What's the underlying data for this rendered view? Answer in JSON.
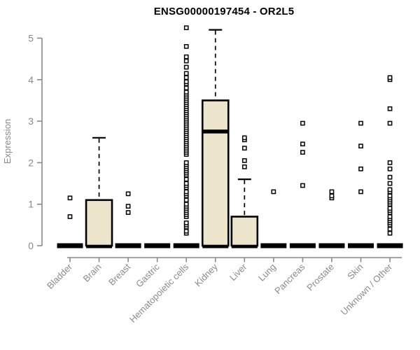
{
  "figure_title": "ENSG00000197454 - OR2L5",
  "colors": {
    "box_fill": "#EDE5CB",
    "box_stroke": "#000000",
    "axis": "#8a8a8a",
    "tick_text": "#8a8a8a",
    "title_text": "#000000",
    "background": "#ffffff"
  },
  "chart_data": {
    "type": "boxplot",
    "title": "ENSG00000197454 - OR2L5",
    "xlabel": "",
    "ylabel": "Expression",
    "ylim": [
      0,
      5.3
    ],
    "yticks": [
      0,
      1,
      2,
      3,
      4,
      5
    ],
    "grid": false,
    "legend": false,
    "categories": [
      "Bladder",
      "Brain",
      "Breast",
      "Gastric",
      "Hematopoietic cells",
      "Kidney",
      "Liver",
      "Lung",
      "Pancreas",
      "Prostate",
      "Skin",
      "Unknown / Other"
    ],
    "series": [
      {
        "category": "Bladder",
        "q1": 0,
        "median": 0,
        "q3": 0,
        "whisker_low": 0,
        "whisker_high": 0,
        "outliers": [
          0.7,
          1.15
        ]
      },
      {
        "category": "Brain",
        "q1": 0,
        "median": 0,
        "q3": 1.1,
        "whisker_low": 0,
        "whisker_high": 2.6,
        "outliers": []
      },
      {
        "category": "Breast",
        "q1": 0,
        "median": 0,
        "q3": 0,
        "whisker_low": 0,
        "whisker_high": 0,
        "outliers": [
          0.8,
          0.95,
          1.25
        ]
      },
      {
        "category": "Gastric",
        "q1": 0,
        "median": 0,
        "q3": 0,
        "whisker_low": 0,
        "whisker_high": 0,
        "outliers": []
      },
      {
        "category": "Hematopoietic cells",
        "q1": 0,
        "median": 0,
        "q3": 0,
        "whisker_low": 0,
        "whisker_high": 0,
        "outliers": [
          0.3,
          0.35,
          0.45,
          0.5,
          0.55,
          0.7,
          0.75,
          0.8,
          0.85,
          0.9,
          0.95,
          1.0,
          1.1,
          1.2,
          1.25,
          1.3,
          1.4,
          1.45,
          1.5,
          1.6,
          1.7,
          1.75,
          1.8,
          1.85,
          1.9,
          1.95,
          2.0,
          2.2,
          2.25,
          2.3,
          2.35,
          2.4,
          2.45,
          2.5,
          2.55,
          2.6,
          2.65,
          2.7,
          2.75,
          2.8,
          2.85,
          2.9,
          2.95,
          3.0,
          3.05,
          3.1,
          3.15,
          3.2,
          3.25,
          3.3,
          3.35,
          3.4,
          3.45,
          3.5,
          3.55,
          3.6,
          3.65,
          3.7,
          3.8,
          3.9,
          3.95,
          4.05,
          4.15,
          4.3,
          4.45,
          4.55,
          4.8,
          5.25
        ]
      },
      {
        "category": "Kidney",
        "q1": 0,
        "median": 2.75,
        "q3": 3.5,
        "whisker_low": 0,
        "whisker_high": 5.2,
        "outliers": []
      },
      {
        "category": "Liver",
        "q1": 0,
        "median": 0,
        "q3": 0.7,
        "whisker_low": 0,
        "whisker_high": 1.6,
        "outliers": [
          1.9,
          2.05,
          2.35,
          2.55,
          2.6
        ]
      },
      {
        "category": "Lung",
        "q1": 0,
        "median": 0,
        "q3": 0,
        "whisker_low": 0,
        "whisker_high": 0,
        "outliers": [
          1.3
        ]
      },
      {
        "category": "Pancreas",
        "q1": 0,
        "median": 0,
        "q3": 0,
        "whisker_low": 0,
        "whisker_high": 0,
        "outliers": [
          1.45,
          2.25,
          2.45,
          2.95
        ]
      },
      {
        "category": "Prostate",
        "q1": 0,
        "median": 0,
        "q3": 0,
        "whisker_low": 0,
        "whisker_high": 0,
        "outliers": [
          1.15,
          1.2,
          1.3
        ]
      },
      {
        "category": "Skin",
        "q1": 0,
        "median": 0,
        "q3": 0,
        "whisker_low": 0,
        "whisker_high": 0,
        "outliers": [
          1.3,
          1.85,
          2.4,
          2.95
        ]
      },
      {
        "category": "Unknown / Other",
        "q1": 0,
        "median": 0,
        "q3": 0,
        "whisker_low": 0,
        "whisker_high": 0,
        "outliers": [
          0.3,
          0.4,
          0.5,
          0.55,
          0.6,
          0.65,
          0.7,
          0.8,
          0.85,
          0.9,
          1.0,
          1.05,
          1.1,
          1.15,
          1.2,
          1.3,
          1.35,
          1.5,
          1.65,
          1.85,
          2.0,
          2.95,
          3.3,
          4.0,
          4.05
        ]
      }
    ]
  }
}
